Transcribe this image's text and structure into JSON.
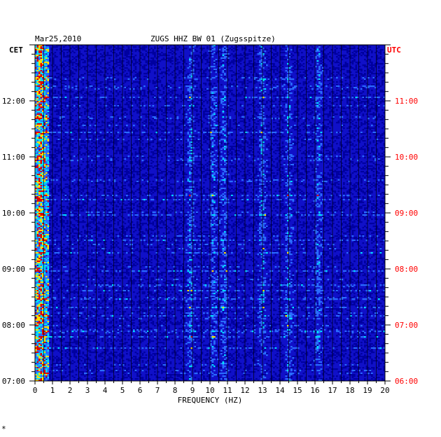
{
  "chart_data": {
    "type": "heatmap",
    "title_date": "Mar25,2010",
    "title_station": "ZUGS HHZ BW 01 (Zugsspitze)",
    "left_axis_label": "CET",
    "right_axis_label": "UTC",
    "xlabel": "FREQUENCY (HZ)",
    "x_ticks": [
      "0",
      "1",
      "2",
      "3",
      "4",
      "5",
      "6",
      "7",
      "8",
      "9",
      "10",
      "11",
      "12",
      "13",
      "14",
      "15",
      "16",
      "17",
      "18",
      "19",
      "20"
    ],
    "xlim": [
      0,
      20
    ],
    "left_time_ticks": [
      "07:00",
      "08:00",
      "09:00",
      "10:00",
      "11:00",
      "12:00"
    ],
    "right_time_ticks": [
      "06:00",
      "07:00",
      "08:00",
      "09:00",
      "10:00",
      "11:00"
    ],
    "time_range_cet": [
      "07:00",
      "12:40"
    ],
    "colors": {
      "background": "#1010c8",
      "low": "#0000a0",
      "mid": "#2a6cff",
      "high_cyan": "#00e0ff",
      "yellow": "#ffe000",
      "red": "#e00000",
      "utc_text": "#ff0000"
    },
    "hot_frequency_bands_hz": [
      0.3,
      8.9,
      10.2,
      10.8,
      13.0,
      14.5,
      16.2
    ]
  },
  "footer_mark": "*"
}
